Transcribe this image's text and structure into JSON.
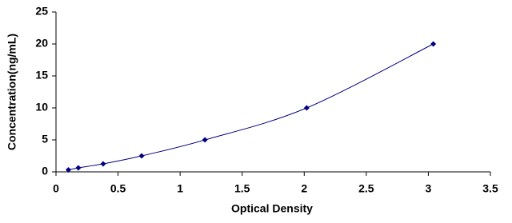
{
  "chart_data": {
    "type": "line",
    "marker": "diamond",
    "smooth": true,
    "x_label": "Optical Density",
    "y_label": "Concentration(ng/mL)",
    "series": [
      {
        "color": "#000080",
        "x": [
          0.1,
          0.18,
          0.38,
          0.69,
          1.2,
          2.02,
          3.04
        ],
        "values": [
          0.31,
          0.63,
          1.25,
          2.5,
          5,
          10,
          20
        ]
      }
    ],
    "xlim": [
      0,
      3.5
    ],
    "xticks": [
      0,
      0.5,
      1,
      1.5,
      2,
      2.5,
      3,
      3.5
    ],
    "ylim": [
      0,
      25
    ],
    "yticks": [
      0,
      5,
      10,
      15,
      20,
      25
    ],
    "grid": false
  }
}
